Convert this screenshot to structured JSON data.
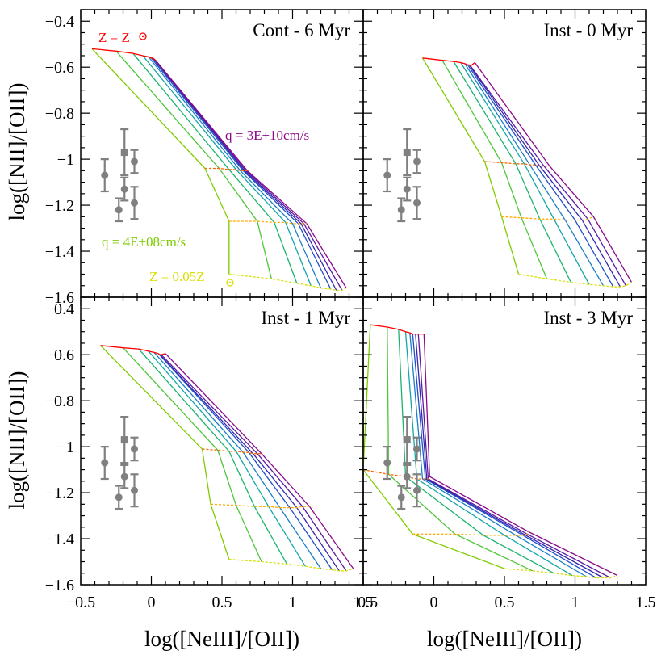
{
  "figure": {
    "xlabel": "log([NeIII]/[OII])",
    "ylabel": "log([NII]/[OII])"
  },
  "colors": {
    "metallicity_high": "#ff0000",
    "metallicity_mid1": "#ff6600",
    "metallicity_mid2": "#ffaa00",
    "metallicity_low": "#d7e000",
    "ionization_lines": [
      "#7fcc00",
      "#4ec63a",
      "#1bb36e",
      "#14a6a6",
      "#1a7ec8",
      "#1f4fc8",
      "#3227b0",
      "#5a1aa6",
      "#8b0a8b"
    ],
    "data_points": "#808080"
  },
  "annotations": {
    "z_high": "Z = Z",
    "z_low": "Z = 0.05Z",
    "q_high": "q = 3E+10cm/s",
    "q_low": "q = 4E+08cm/s"
  },
  "chart_data": [
    {
      "type": "line",
      "title": "Cont - 6 Myr",
      "xlim": [
        -0.5,
        1.5
      ],
      "ylim": [
        -1.6,
        -0.35
      ],
      "xticks": [
        -0.5,
        0,
        0.5,
        1,
        1.5
      ],
      "yticks": [
        -1.6,
        -1.4,
        -1.2,
        -1,
        -0.8,
        -0.6,
        -0.4
      ],
      "metallicity_lines": [
        {
          "x": [
            -0.42,
            -0.25,
            -0.13,
            -0.06,
            -0.02,
            0.0,
            0.01,
            0.02,
            0.03
          ]
        },
        {
          "x": [
            0.38,
            0.48,
            0.55,
            0.6,
            0.63,
            0.65,
            0.66,
            0.67,
            0.68
          ]
        },
        {
          "x": [
            0.55,
            0.75,
            0.87,
            0.95,
            1.0,
            1.04,
            1.06,
            1.08,
            1.1
          ]
        },
        {
          "x": [
            0.55,
            0.85,
            1.03,
            1.13,
            1.2,
            1.27,
            1.31,
            1.35,
            1.38
          ]
        }
      ],
      "metallicity_y": [
        [
          -0.52,
          -0.53,
          -0.54,
          -0.55,
          -0.555,
          -0.56,
          -0.56,
          -0.565,
          -0.57
        ],
        [
          -1.04,
          -1.04,
          -1.045,
          -1.045,
          -1.05,
          -1.05,
          -1.05,
          -1.05,
          -1.05
        ],
        [
          -1.27,
          -1.27,
          -1.275,
          -1.275,
          -1.28,
          -1.28,
          -1.28,
          -1.28,
          -1.28
        ],
        [
          -1.5,
          -1.52,
          -1.54,
          -1.55,
          -1.56,
          -1.565,
          -1.57,
          -1.57,
          -1.56
        ]
      ],
      "points": [
        {
          "x": -0.33,
          "y": -1.07,
          "yerr": 0.07
        },
        {
          "x": -0.23,
          "y": -1.22,
          "yerr": 0.05
        },
        {
          "x": -0.19,
          "y": -0.97,
          "yerr": 0.1
        },
        {
          "x": -0.19,
          "y": -1.13,
          "yerr": 0.05
        },
        {
          "x": -0.12,
          "y": -1.01,
          "yerr": 0.05
        },
        {
          "x": -0.12,
          "y": -1.19,
          "yerr": 0.07
        }
      ]
    },
    {
      "type": "line",
      "title": "Inst - 0 Myr",
      "xlim": [
        -0.5,
        1.5
      ],
      "ylim": [
        -1.6,
        -0.35
      ],
      "xticks": [
        -0.5,
        0,
        0.5,
        1,
        1.5
      ],
      "yticks": [
        -1.6,
        -1.4,
        -1.2,
        -1,
        -0.8,
        -0.6,
        -0.4
      ],
      "metallicity_lines": [
        {
          "x": [
            -0.08,
            0.06,
            0.14,
            0.19,
            0.22,
            0.24,
            0.25,
            0.26,
            0.29
          ]
        },
        {
          "x": [
            0.36,
            0.48,
            0.58,
            0.64,
            0.68,
            0.72,
            0.75,
            0.78,
            0.82
          ]
        },
        {
          "x": [
            0.48,
            0.62,
            0.75,
            0.85,
            0.93,
            1.0,
            1.05,
            1.09,
            1.13
          ]
        },
        {
          "x": [
            0.6,
            0.8,
            0.97,
            1.1,
            1.2,
            1.27,
            1.32,
            1.36,
            1.4
          ]
        }
      ],
      "metallicity_y": [
        [
          -0.56,
          -0.57,
          -0.575,
          -0.58,
          -0.585,
          -0.59,
          -0.59,
          -0.595,
          -0.58
        ],
        [
          -1.01,
          -1.015,
          -1.02,
          -1.02,
          -1.025,
          -1.025,
          -1.03,
          -1.03,
          -1.03
        ],
        [
          -1.25,
          -1.255,
          -1.26,
          -1.26,
          -1.265,
          -1.265,
          -1.265,
          -1.26,
          -1.25
        ],
        [
          -1.5,
          -1.52,
          -1.535,
          -1.545,
          -1.55,
          -1.555,
          -1.555,
          -1.55,
          -1.535
        ]
      ],
      "points": [
        {
          "x": -0.33,
          "y": -1.07,
          "yerr": 0.07
        },
        {
          "x": -0.23,
          "y": -1.22,
          "yerr": 0.05
        },
        {
          "x": -0.19,
          "y": -0.97,
          "yerr": 0.1
        },
        {
          "x": -0.19,
          "y": -1.13,
          "yerr": 0.05
        },
        {
          "x": -0.12,
          "y": -1.01,
          "yerr": 0.05
        },
        {
          "x": -0.12,
          "y": -1.19,
          "yerr": 0.07
        }
      ]
    },
    {
      "type": "line",
      "title": "Inst - 1 Myr",
      "xlim": [
        -0.5,
        1.5
      ],
      "ylim": [
        -1.6,
        -0.35
      ],
      "xticks": [
        -0.5,
        0,
        0.5,
        1,
        1.5
      ],
      "yticks": [
        -1.6,
        -1.4,
        -1.2,
        -1,
        -0.8,
        -0.6,
        -0.4
      ],
      "metallicity_lines": [
        {
          "x": [
            -0.36,
            -0.2,
            -0.09,
            -0.02,
            0.02,
            0.05,
            0.06,
            0.07,
            0.1
          ]
        },
        {
          "x": [
            0.36,
            0.47,
            0.55,
            0.6,
            0.65,
            0.69,
            0.72,
            0.75,
            0.78
          ]
        },
        {
          "x": [
            0.42,
            0.6,
            0.73,
            0.83,
            0.91,
            0.98,
            1.03,
            1.07,
            1.12
          ]
        },
        {
          "x": [
            0.55,
            0.78,
            0.96,
            1.09,
            1.2,
            1.28,
            1.33,
            1.38,
            1.43
          ]
        }
      ],
      "metallicity_y": [
        [
          -0.56,
          -0.57,
          -0.575,
          -0.585,
          -0.59,
          -0.595,
          -0.6,
          -0.6,
          -0.595
        ],
        [
          -1.01,
          -1.015,
          -1.02,
          -1.02,
          -1.025,
          -1.025,
          -1.03,
          -1.03,
          -1.03
        ],
        [
          -1.25,
          -1.255,
          -1.26,
          -1.26,
          -1.265,
          -1.265,
          -1.265,
          -1.26,
          -1.26
        ],
        [
          -1.49,
          -1.5,
          -1.51,
          -1.52,
          -1.53,
          -1.535,
          -1.54,
          -1.54,
          -1.53
        ]
      ],
      "points": [
        {
          "x": -0.33,
          "y": -1.07,
          "yerr": 0.07
        },
        {
          "x": -0.23,
          "y": -1.22,
          "yerr": 0.05
        },
        {
          "x": -0.19,
          "y": -0.97,
          "yerr": 0.1
        },
        {
          "x": -0.19,
          "y": -1.13,
          "yerr": 0.05
        },
        {
          "x": -0.12,
          "y": -1.01,
          "yerr": 0.05
        },
        {
          "x": -0.12,
          "y": -1.19,
          "yerr": 0.07
        }
      ]
    },
    {
      "type": "line",
      "title": "Inst - 3 Myr",
      "xlim": [
        -0.5,
        1.5
      ],
      "ylim": [
        -1.6,
        -0.35
      ],
      "xticks": [
        -0.5,
        0,
        0.5,
        1,
        1.5
      ],
      "yticks": [
        -1.6,
        -1.4,
        -1.2,
        -1,
        -0.8,
        -0.6,
        -0.4
      ],
      "metallicity_lines": [
        {
          "x": [
            -0.45,
            -0.33,
            -0.25,
            -0.2,
            -0.17,
            -0.15,
            -0.13,
            -0.11,
            -0.07
          ]
        },
        {
          "x": [
            -0.5,
            -0.32,
            -0.2,
            -0.12,
            -0.08,
            -0.06,
            -0.05,
            -0.04,
            -0.03
          ]
        },
        {
          "x": [
            -0.15,
            0.15,
            0.35,
            0.5,
            0.58,
            0.63,
            0.65,
            0.66,
            0.67
          ]
        },
        {
          "x": [
            0.5,
            0.7,
            0.85,
            0.98,
            1.08,
            1.15,
            1.2,
            1.25,
            1.3
          ]
        }
      ],
      "metallicity_y": [
        [
          -0.47,
          -0.48,
          -0.49,
          -0.5,
          -0.505,
          -0.51,
          -0.51,
          -0.51,
          -0.51
        ],
        [
          -1.1,
          -1.12,
          -1.13,
          -1.14,
          -1.14,
          -1.14,
          -1.14,
          -1.14,
          -1.13
        ],
        [
          -1.38,
          -1.38,
          -1.385,
          -1.385,
          -1.385,
          -1.385,
          -1.385,
          -1.38,
          -1.37
        ],
        [
          -1.53,
          -1.54,
          -1.55,
          -1.56,
          -1.565,
          -1.57,
          -1.57,
          -1.57,
          -1.56
        ]
      ],
      "points": [
        {
          "x": -0.33,
          "y": -1.07,
          "yerr": 0.07
        },
        {
          "x": -0.23,
          "y": -1.22,
          "yerr": 0.05
        },
        {
          "x": -0.19,
          "y": -0.97,
          "yerr": 0.1
        },
        {
          "x": -0.19,
          "y": -1.13,
          "yerr": 0.05
        },
        {
          "x": -0.12,
          "y": -1.01,
          "yerr": 0.05
        },
        {
          "x": -0.12,
          "y": -1.19,
          "yerr": 0.07
        }
      ]
    }
  ]
}
